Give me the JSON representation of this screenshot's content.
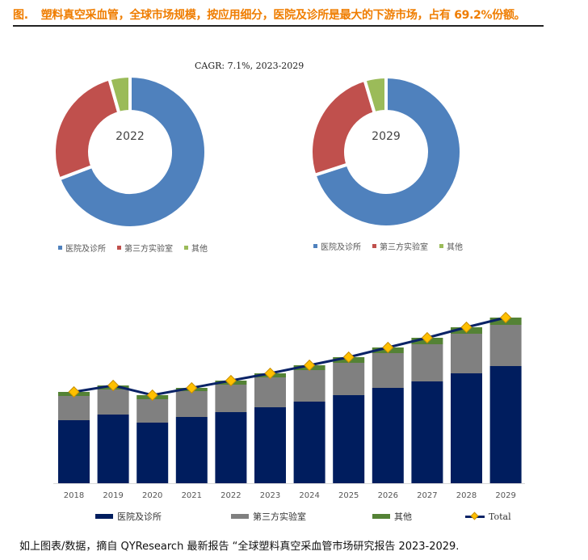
{
  "header": {
    "figure_label": "图.",
    "title": "塑料真空采血管，全球市场规模，按应用细分，医院及诊所是最大的下游市场，占有 69.2%份额。"
  },
  "cagr_note": "CAGR:  7.1%, 2023-2029",
  "footer": {
    "source": "如上图表/数据，摘自 QYResearch 最新报告 “全球塑料真空采血管市场研究报告 2023-2029."
  },
  "colors": {
    "title": "#ef7d00",
    "pie_hospital": "#4f81bd",
    "pie_lab": "#c0504d",
    "pie_other": "#9bbb59",
    "bar_hospital": "#001d5e",
    "bar_lab": "#808080",
    "bar_other": "#548235",
    "total_line": "#0a2366",
    "total_marker": "#ffc000"
  },
  "pie_legend": {
    "items": [
      {
        "label": "医院及诊所"
      },
      {
        "label": "第三方实验室"
      },
      {
        "label": "其他"
      }
    ]
  },
  "bar_legend": {
    "items": [
      {
        "label": "医院及诊所"
      },
      {
        "label": "第三方实验室"
      },
      {
        "label": "其他"
      },
      {
        "label": "Total"
      }
    ]
  },
  "chart_data": [
    {
      "type": "pie",
      "subtype": "donut",
      "center_label": "2022",
      "categories": [
        "医院及诊所",
        "第三方实验室",
        "其他"
      ],
      "values": [
        69.2,
        26.4,
        4.4
      ],
      "unit": "%",
      "legend_position": "bottom"
    },
    {
      "type": "pie",
      "subtype": "donut",
      "center_label": "2029",
      "categories": [
        "医院及诊所",
        "第三方实验室",
        "其他"
      ],
      "values": [
        70.0,
        25.4,
        4.6
      ],
      "unit": "%",
      "legend_position": "bottom",
      "annotation": "CAGR:  7.1%, 2023-2029"
    },
    {
      "type": "bar",
      "stacked": true,
      "title": "",
      "xlabel": "",
      "ylabel": "",
      "y_axis_visible": false,
      "grid": false,
      "legend_position": "bottom",
      "note": "No y-axis tick labels shown; values are relative heights read from pixels.",
      "categories": [
        "2018",
        "2019",
        "2020",
        "2021",
        "2022",
        "2023",
        "2024",
        "2025",
        "2026",
        "2027",
        "2028",
        "2029"
      ],
      "series": [
        {
          "name": "医院及诊所",
          "values": [
            78,
            85,
            75,
            82,
            88,
            94,
            101,
            109,
            118,
            126,
            136,
            145
          ]
        },
        {
          "name": "第三方实验室",
          "values": [
            30,
            31,
            29,
            32,
            34,
            37,
            39,
            40,
            43,
            46,
            49,
            51
          ]
        },
        {
          "name": "其他",
          "values": [
            5,
            5,
            5,
            4,
            5,
            5,
            6,
            7,
            7,
            8,
            8,
            9
          ]
        },
        {
          "name": "Total",
          "type": "line",
          "values": [
            113,
            121,
            109,
            118,
            127,
            136,
            146,
            156,
            168,
            180,
            193,
            205
          ]
        }
      ],
      "ylim": [
        0,
        220
      ]
    }
  ]
}
